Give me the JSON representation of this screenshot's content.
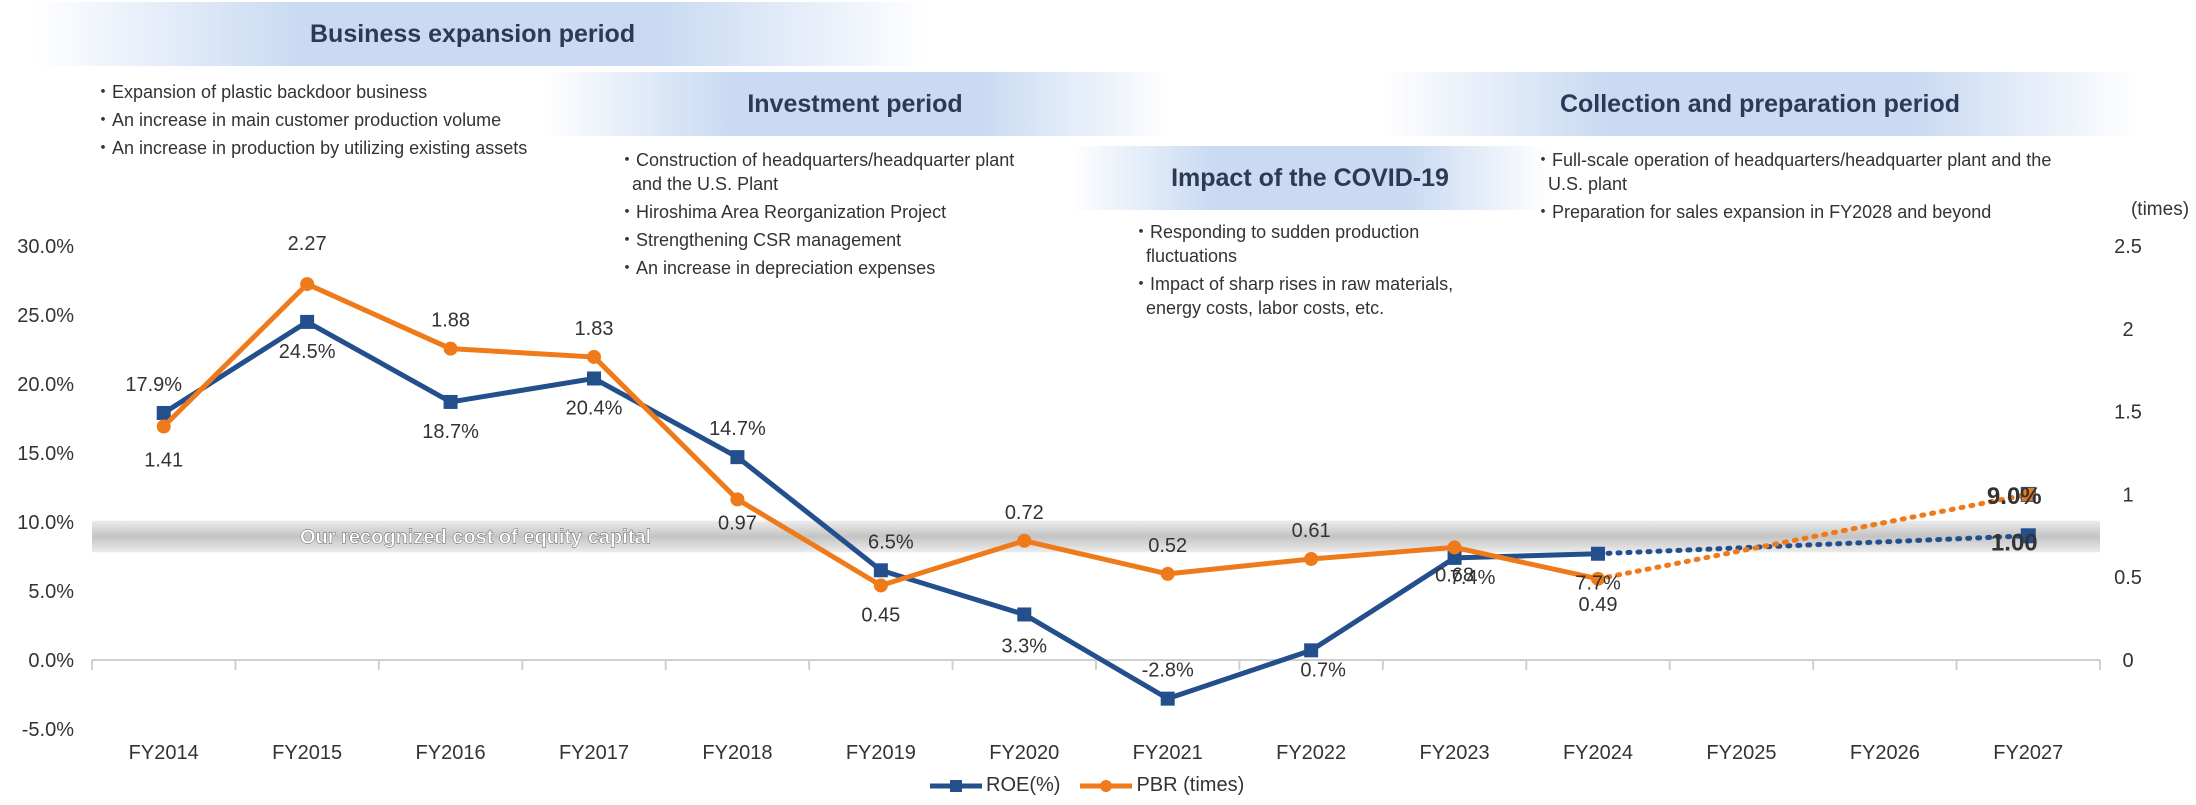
{
  "periods": {
    "expansion": {
      "title": "Business expansion period",
      "notes": [
        "Expansion of plastic backdoor business",
        "An increase in main customer production volume",
        "An increase in production by utilizing existing assets"
      ]
    },
    "investment": {
      "title": "Investment period",
      "notes": [
        "Construction of headquarters/headquarter plant and the U.S. Plant",
        "Hiroshima Area Reorganization Project",
        "Strengthening CSR management",
        "An increase in depreciation expenses"
      ]
    },
    "covid": {
      "title": "Impact of the COVID-19",
      "notes": [
        "Responding to sudden production fluctuations",
        "Impact of sharp rises in raw materials, energy costs, labor costs, etc."
      ]
    },
    "collection": {
      "title": "Collection and preparation period",
      "notes": [
        "Full-scale operation of headquarters/headquarter plant and the U.S. plant",
        "Preparation for sales expansion in FY2028 and beyond"
      ]
    }
  },
  "chart_data": {
    "type": "line",
    "categories": [
      "FY2014",
      "FY2015",
      "FY2016",
      "FY2017",
      "FY2018",
      "FY2019",
      "FY2020",
      "FY2021",
      "FY2022",
      "FY2023",
      "FY2024",
      "FY2025",
      "FY2026",
      "FY2027"
    ],
    "left_axis": {
      "ticks": [
        "30.0%",
        "25.0%",
        "20.0%",
        "15.0%",
        "10.0%",
        "5.0%",
        "0.0%",
        "-5.0%"
      ],
      "range": [
        -5,
        30
      ]
    },
    "right_axis": {
      "unit_label": "(times)",
      "ticks": [
        "2.5",
        "2",
        "1.5",
        "1",
        "0.5",
        "0"
      ],
      "range": [
        0,
        2.5
      ]
    },
    "cost_of_equity_band": {
      "label": "Our recognized cost of equity capital",
      "range": [
        7.8,
        10.1
      ]
    },
    "series": [
      {
        "name": "ROE(%)",
        "axis": "left",
        "color": "#234f8c",
        "marker": "square",
        "values": [
          17.9,
          24.5,
          18.7,
          20.4,
          14.7,
          6.5,
          3.3,
          -2.8,
          0.7,
          7.4,
          7.7,
          null,
          null,
          9.0
        ],
        "labels": [
          "17.9%",
          "24.5%",
          "18.7%",
          "20.4%",
          "14.7%",
          "6.5%",
          "3.3%",
          "-2.8%",
          "0.7%",
          "7.4%",
          "7.7%",
          "",
          "",
          "9.0%"
        ],
        "target_from_index": 10
      },
      {
        "name": "PBR (times)",
        "axis": "right",
        "color": "#ef7a1a",
        "marker": "circle",
        "values": [
          1.41,
          2.27,
          1.88,
          1.83,
          0.97,
          0.45,
          0.72,
          0.52,
          0.61,
          0.68,
          0.49,
          null,
          null,
          1.0
        ],
        "labels": [
          "1.41",
          "2.27",
          "1.88",
          "1.83",
          "0.97",
          "0.45",
          "0.72",
          "0.52",
          "0.61",
          "0.68",
          "0.49",
          "",
          "",
          "1.00"
        ],
        "target_from_index": 10
      }
    ]
  }
}
